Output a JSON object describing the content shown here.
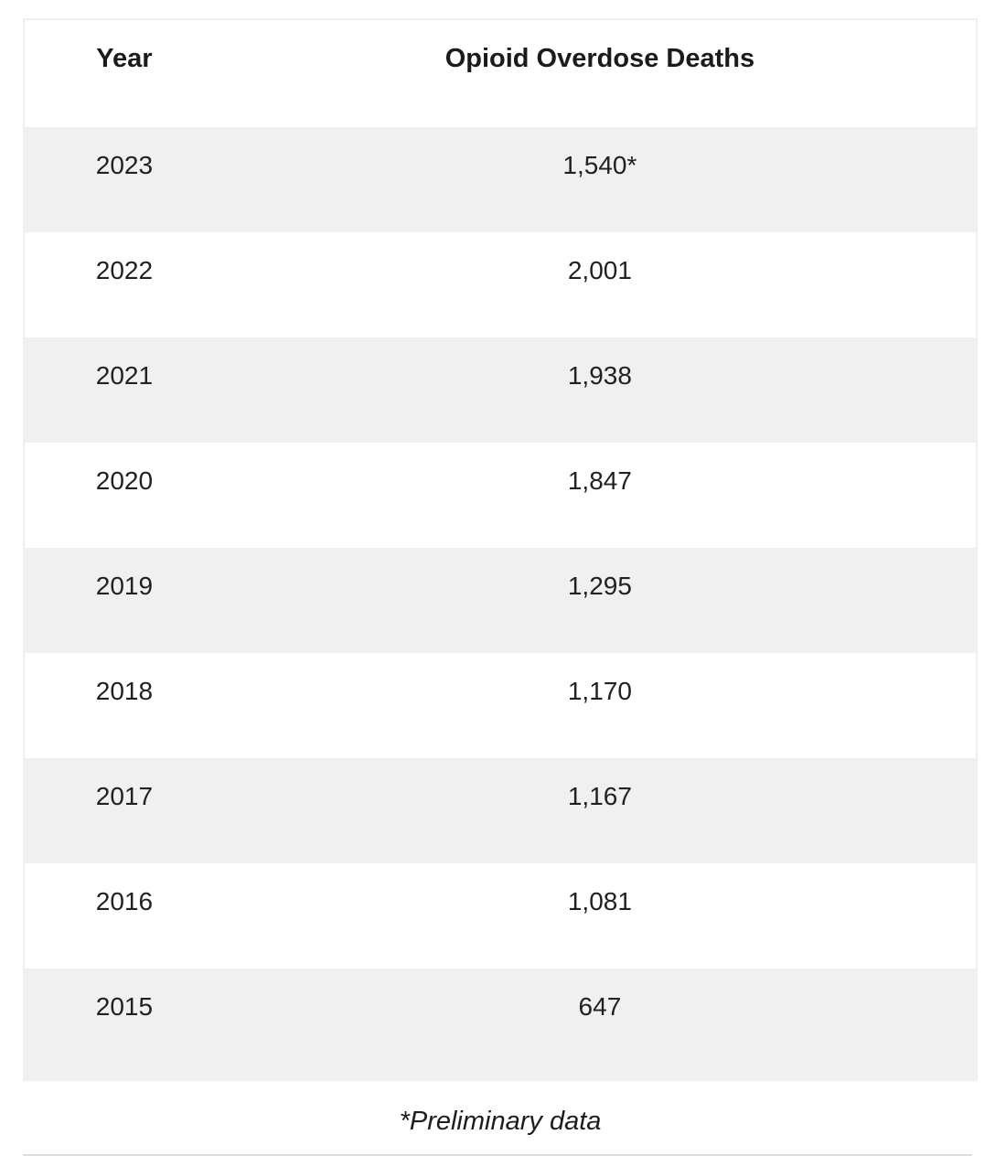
{
  "chart_data": {
    "type": "table",
    "columns": [
      "Year",
      "Opioid Overdose Deaths"
    ],
    "rows": [
      [
        "2023",
        "1,540*"
      ],
      [
        "2022",
        "2,001"
      ],
      [
        "2021",
        "1,938"
      ],
      [
        "2020",
        "1,847"
      ],
      [
        "2019",
        "1,295"
      ],
      [
        "2018",
        "1,170"
      ],
      [
        "2017",
        "1,167"
      ],
      [
        "2016",
        "1,081"
      ],
      [
        "2015",
        "647"
      ]
    ],
    "values_numeric": [
      1540,
      2001,
      1938,
      1847,
      1295,
      1170,
      1167,
      1081,
      647
    ],
    "footnote": "*Preliminary data",
    "layout": {
      "alternating_row_shading": true,
      "shaded_rows": "odd data rows starting with 2023",
      "column_alignment": "center"
    }
  },
  "colors": {
    "row_alt_background": "#f0f0f0",
    "row_background": "#ffffff",
    "table_border": "#efefef",
    "text": "#212121",
    "header_text": "#1b1b1b",
    "bottom_divider": "#dcdcdc"
  }
}
